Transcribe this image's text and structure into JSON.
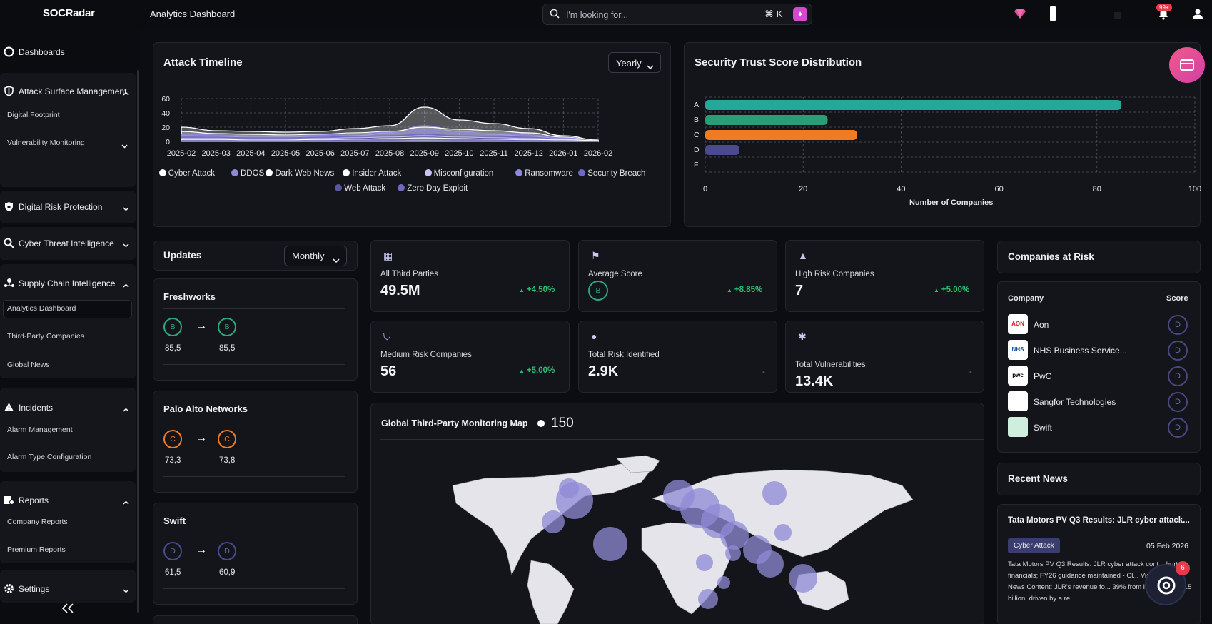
{
  "app": {
    "logo": "SOCRadar",
    "page_title": "Analytics Dashboard"
  },
  "search": {
    "placeholder": "I'm looking for...",
    "shortcut": "⌘ K"
  },
  "topbar": {
    "notification_count": "99+",
    "news_badge_count": "6"
  },
  "sidebar": {
    "dashboards": "Dashboards",
    "groups": [
      {
        "label": "Attack Surface Management",
        "items": [
          "Digital Footprint",
          "Vulnerability Monitoring"
        ]
      },
      {
        "label": "Digital Risk Protection"
      },
      {
        "label": "Cyber Threat Intelligence"
      },
      {
        "label": "Supply Chain Intelligence",
        "items": [
          "Analytics Dashboard",
          "Third-Party Companies",
          "Global News"
        ]
      },
      {
        "label": "Incidents",
        "items": [
          "Alarm Management",
          "Alarm Type Configuration"
        ]
      },
      {
        "label": "Reports",
        "items": [
          "Company Reports",
          "Premium Reports"
        ]
      },
      {
        "label": "Settings"
      }
    ]
  },
  "attack_timeline": {
    "title": "Attack Timeline",
    "range": "Yearly",
    "y_ticks": [
      "60",
      "40",
      "20",
      "0"
    ],
    "x_ticks": [
      "2025-02",
      "2025-03",
      "2025-04",
      "2025-05",
      "2025-06",
      "2025-07",
      "2025-08",
      "2025-09",
      "2025-10",
      "2025-11",
      "2025-12",
      "2026-01",
      "2026-02"
    ],
    "legend": [
      "Cyber Attack",
      "DDOS",
      "Dark Web News",
      "Insider Attack",
      "Misconfiguration",
      "Ransomware",
      "Security Breach",
      "Web Attack",
      "Zero Day Exploit"
    ]
  },
  "trust_score": {
    "title": "Security Trust Score Distribution",
    "xlabel": "Number of Companies",
    "x_ticks": [
      "0",
      "20",
      "40",
      "60",
      "80",
      "100"
    ]
  },
  "updates": {
    "title": "Updates",
    "range": "Monthly",
    "items": [
      {
        "company": "Freshworks",
        "from_grade": "B",
        "from_score": "85,5",
        "to_grade": "B",
        "to_score": "85,5"
      },
      {
        "company": "Palo Alto Networks",
        "from_grade": "C",
        "from_score": "73,3",
        "to_grade": "C",
        "to_score": "73,8"
      },
      {
        "company": "Swift",
        "from_grade": "D",
        "from_score": "61,5",
        "to_grade": "D",
        "to_score": "60,9"
      }
    ]
  },
  "stats": [
    {
      "label": "All Third Parties",
      "value": "49.5M",
      "change": "+4.50%"
    },
    {
      "label": "Average Score",
      "value": "B",
      "change": "+8.85%"
    },
    {
      "label": "High Risk Companies",
      "value": "7",
      "change": "+5.00%"
    },
    {
      "label": "Medium Risk Companies",
      "value": "56",
      "change": "+5.00%"
    },
    {
      "label": "Total Risk Identified",
      "value": "2.9K",
      "change": "-"
    },
    {
      "label": "Total Vulnerabilities",
      "value": "13.4K",
      "change": "-"
    }
  ],
  "map": {
    "title": "Global Third-Party Monitoring Map",
    "count": "150"
  },
  "companies_at_risk": {
    "title": "Companies at Risk",
    "col_company": "Company",
    "col_score": "Score",
    "rows": [
      {
        "name": "Aon",
        "logo": "AON",
        "score": "D"
      },
      {
        "name": "NHS Business Service...",
        "logo": "NHS",
        "score": "D"
      },
      {
        "name": "PwC",
        "logo": "pwc",
        "score": "D"
      },
      {
        "name": "Sangfor Technologies",
        "logo": "",
        "score": "D"
      },
      {
        "name": "Swift",
        "logo": "",
        "score": "D"
      }
    ]
  },
  "recent_news": {
    "title": "Recent News",
    "headline": "Tata Motors PV Q3 Results: JLR cyber attack...",
    "tag": "Cyber Attack",
    "date": "05 Feb 2026",
    "body": "Tata Motors PV Q3 Results: JLR cyber attack cont... hurt financials; FY26 guidance maintained - Cl... Victim: JLR | News Content: JLR's revenue fo... 39% from last year to £4.5 billion, driven by a re..."
  },
  "chart_data": [
    {
      "type": "area",
      "title": "Attack Timeline",
      "x": [
        "2025-02",
        "2025-03",
        "2025-04",
        "2025-05",
        "2025-06",
        "2025-07",
        "2025-08",
        "2025-09",
        "2025-10",
        "2025-11",
        "2025-12",
        "2026-01",
        "2026-02"
      ],
      "ylim": [
        0,
        60
      ],
      "grid": true,
      "legend_position": "bottom",
      "series": [
        {
          "name": "Cyber Attack",
          "color": "#ffffff",
          "values": [
            20,
            15,
            14,
            13,
            14,
            18,
            22,
            48,
            30,
            25,
            18,
            8,
            2
          ]
        },
        {
          "name": "DDOS",
          "color": "#8e89d6",
          "values": [
            8,
            7,
            6,
            6,
            7,
            8,
            12,
            22,
            14,
            10,
            7,
            4,
            1
          ]
        },
        {
          "name": "Dark Web News",
          "color": "#ffffff",
          "values": [
            14,
            11,
            10,
            9,
            10,
            12,
            14,
            20,
            17,
            15,
            12,
            6,
            1
          ]
        },
        {
          "name": "Insider Attack",
          "color": "#ffffff",
          "values": [
            3,
            3,
            2,
            2,
            3,
            3,
            4,
            5,
            4,
            3,
            3,
            2,
            1
          ]
        },
        {
          "name": "Misconfiguration",
          "color": "#c7c4f2",
          "values": [
            4,
            4,
            3,
            3,
            4,
            5,
            6,
            8,
            6,
            5,
            4,
            3,
            1
          ]
        },
        {
          "name": "Ransomware",
          "color": "#8f88e0",
          "values": [
            10,
            9,
            8,
            8,
            9,
            11,
            13,
            16,
            13,
            11,
            9,
            5,
            1
          ]
        },
        {
          "name": "Security Breach",
          "color": "#6e69c4",
          "values": [
            6,
            6,
            5,
            5,
            6,
            7,
            8,
            10,
            8,
            7,
            6,
            3,
            1
          ]
        },
        {
          "name": "Web Attack",
          "color": "#5b579f",
          "values": [
            3,
            3,
            3,
            3,
            3,
            4,
            5,
            6,
            5,
            4,
            3,
            2,
            0
          ]
        },
        {
          "name": "Zero Day Exploit",
          "color": "#6e6ab8",
          "values": [
            1,
            1,
            1,
            1,
            1,
            2,
            2,
            3,
            2,
            2,
            1,
            1,
            0
          ]
        }
      ]
    },
    {
      "type": "bar",
      "orientation": "horizontal",
      "title": "Security Trust Score Distribution",
      "categories": [
        "A",
        "B",
        "C",
        "D",
        "F"
      ],
      "values": [
        85,
        25,
        31,
        7,
        0
      ],
      "colors": [
        "#25a89a",
        "#2a9d78",
        "#f07b22",
        "#4b4a8c",
        "#555555"
      ],
      "xlabel": "Number of Companies",
      "xlim": [
        0,
        100
      ],
      "grid": true
    }
  ]
}
